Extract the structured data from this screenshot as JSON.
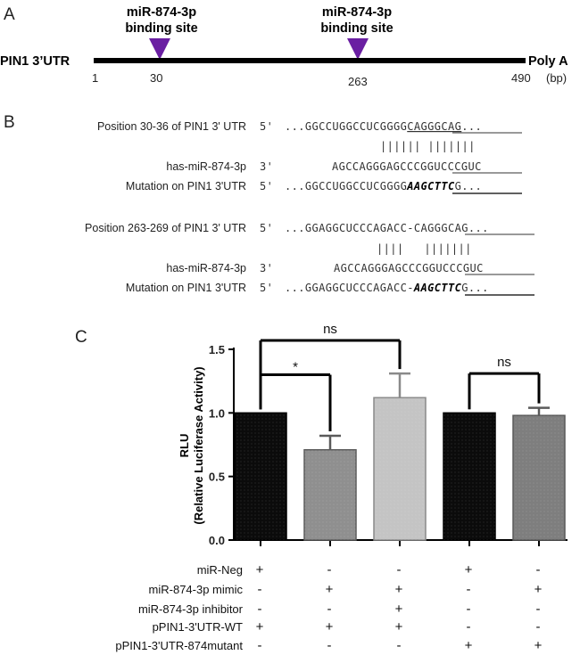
{
  "panels": {
    "a": "A",
    "b": "B",
    "c": "C"
  },
  "panelA": {
    "utr_label": "PIN1 3’UTR",
    "polya_label": "Poly A",
    "site_label_1": "miR-874-3p",
    "site_label_2": "binding site",
    "positions": [
      "1",
      "30",
      "263",
      "490"
    ],
    "unit": "(bp)"
  },
  "panelB": {
    "blocks": [
      {
        "pos_label": "Position 30-36 of PIN1 3' UTR",
        "pos_prime": "5'",
        "pos_seq_pre": "...GGCCUGGCCUCGGGG",
        "pos_seq_site": "CAGGGCAG",
        "pos_seq_post": "...",
        "bars": "|||||| |||||||",
        "mir_label": "has-miR-874-3p",
        "mir_prime": "3'",
        "mir_seq_pre": "AGCCAGGGAGCCCG",
        "mir_seq_site": "GUCCCGUC",
        "mut_label": "Mutation on PIN1 3'UTR",
        "mut_prime": "5'",
        "mut_seq_pre": "...GGCCUGGCCUCGGGG",
        "mut_seq_site": "AAGCTTC",
        "mut_seq_post": "G..."
      },
      {
        "pos_label": "Position 263-269 of PIN1 3' UTR",
        "pos_prime": "5'",
        "pos_seq_pre": "...GGAGGCUCCCAGACC-",
        "pos_seq_site": "CAGGGCAG",
        "pos_seq_post": "...",
        "bars": "||||   |||||||",
        "mir_label": "has-miR-874-3p",
        "mir_prime": "3'",
        "mir_seq_pre": "AGCCAGGGAGCCCG",
        "mir_seq_site": "GUCCCGUC",
        "mut_label": "Mutation on PIN1 3'UTR",
        "mut_prime": "5'",
        "mut_seq_pre": "...GGAGGCUCCCAGACC-",
        "mut_seq_site": "AAGCTTC",
        "mut_seq_post": "G..."
      }
    ]
  },
  "chart_data": {
    "type": "bar",
    "ylabel_line1": "RLU",
    "ylabel_line2": "(Relative Luciferase Activity)",
    "ylim": [
      0,
      1.5
    ],
    "yticks": [
      "0.0",
      "0.5",
      "1.0",
      "1.5"
    ],
    "values": [
      1.0,
      0.71,
      1.12,
      1.0,
      0.98
    ],
    "errors": [
      0,
      0.11,
      0.19,
      0,
      0.06
    ],
    "bar_colors": [
      "#0b0b0b",
      "#8f8f8f",
      "#c4c4c4",
      "#0b0b0b",
      "#7e7e7e"
    ],
    "bar_edges": [
      "#000000",
      "#5a5a5a",
      "#8a8a8a",
      "#000000",
      "#5a5a5a"
    ],
    "grid": false,
    "significance": [
      {
        "from": 0,
        "to": 1,
        "label": "*"
      },
      {
        "from": 0,
        "to": 2,
        "label": "ns"
      },
      {
        "from": 3,
        "to": 4,
        "label": "ns"
      }
    ],
    "conditions": [
      {
        "label": "miR-Neg",
        "marks": [
          "+",
          "-",
          "-",
          "+",
          "-"
        ]
      },
      {
        "label": "miR-874-3p mimic",
        "marks": [
          "-",
          "+",
          "+",
          "-",
          "+"
        ]
      },
      {
        "label": "miR-874-3p inhibitor",
        "marks": [
          "-",
          "-",
          "+",
          "-",
          "-"
        ]
      },
      {
        "label": "pPIN1-3'UTR-WT",
        "marks": [
          "+",
          "+",
          "+",
          "-",
          "-"
        ]
      },
      {
        "label": "pPIN1-3'UTR-874mutant",
        "marks": [
          "-",
          "-",
          "-",
          "+",
          "+"
        ]
      }
    ]
  }
}
